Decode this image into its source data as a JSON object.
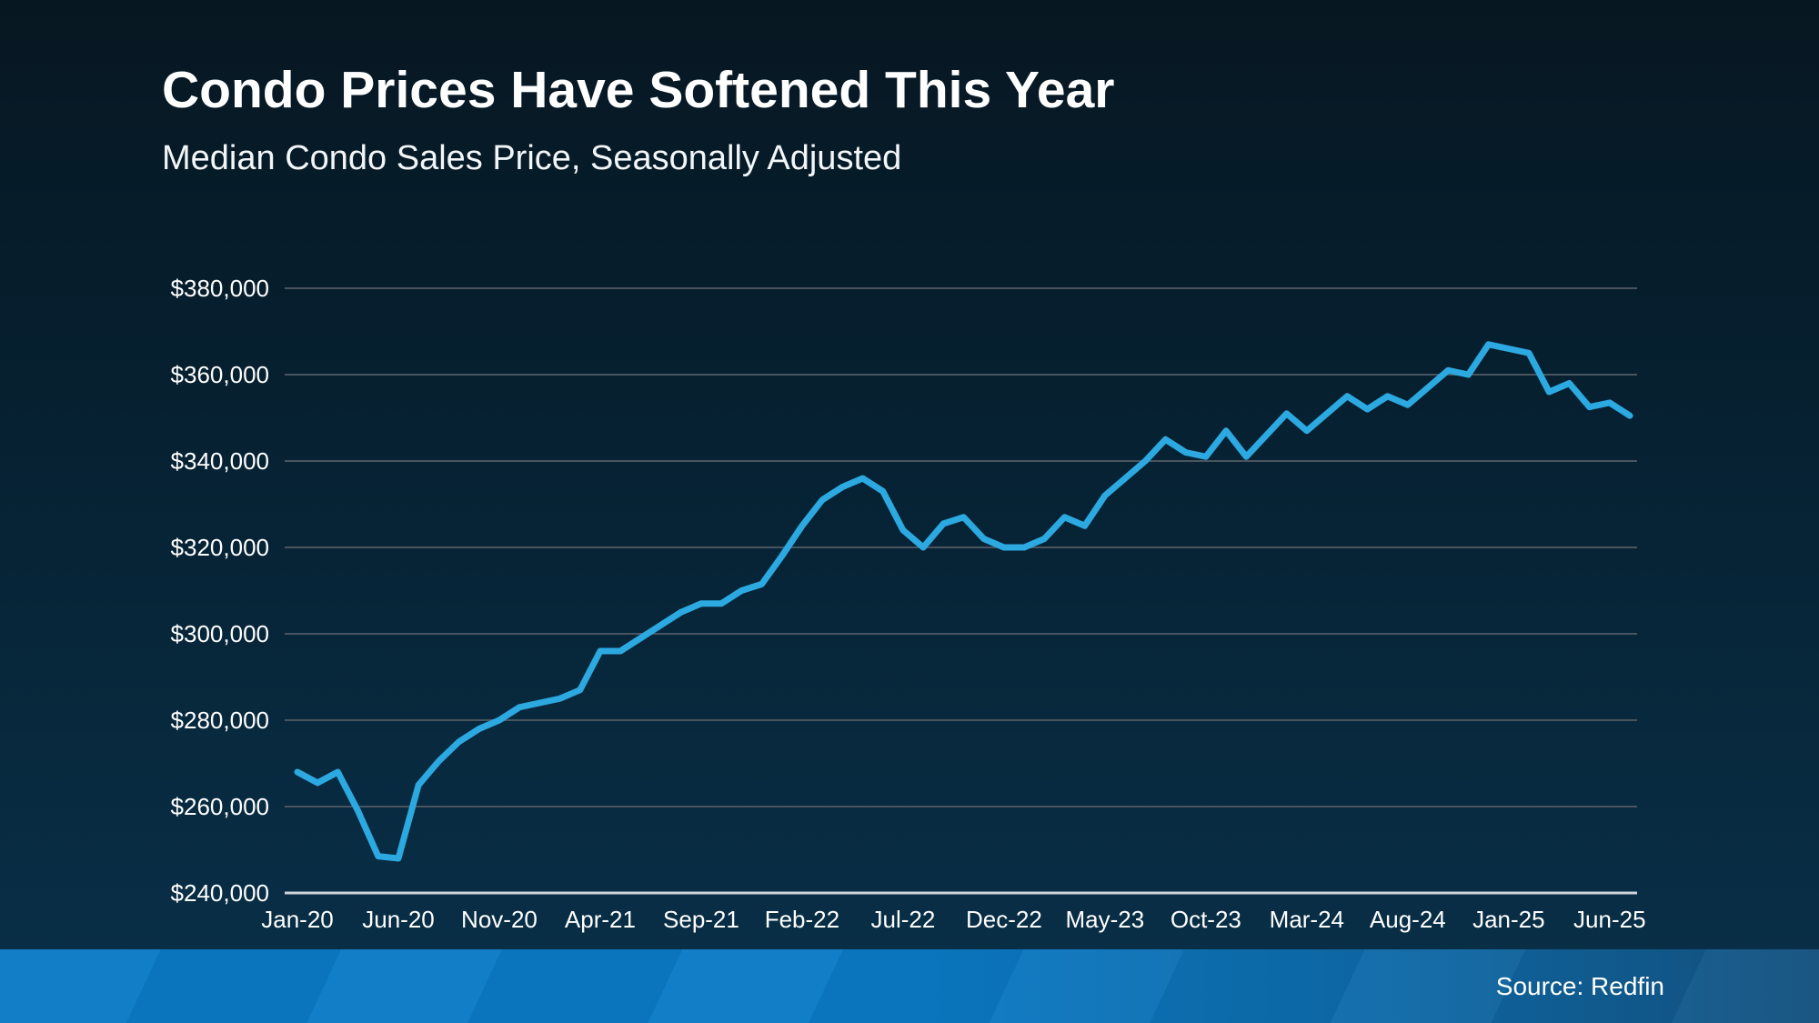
{
  "header": {
    "title": "Condo Prices Have Softened This Year",
    "subtitle": "Median Condo Sales Price, Seasonally Adjusted"
  },
  "footer": {
    "source": "Source: Redfin"
  },
  "colors": {
    "background_top": "#071722",
    "background_bottom": "#093049",
    "line": "#2CA9E1",
    "gridline": "#4a545f",
    "axis_line": "#ccd4da",
    "text": "#ffffff",
    "footer_bar_left": "#0a7ac5",
    "footer_bar_right": "#14517e"
  },
  "chart_data": {
    "type": "line",
    "title": "Condo Prices Have Softened This Year",
    "subtitle": "Median Condo Sales Price, Seasonally Adjusted",
    "xlabel": "",
    "ylabel": "",
    "unit": "USD",
    "grid": true,
    "legend": false,
    "ylim": [
      240000,
      380000
    ],
    "y_ticks": [
      {
        "value": 380000,
        "label": "$380,000"
      },
      {
        "value": 360000,
        "label": "$360,000"
      },
      {
        "value": 340000,
        "label": "$340,000"
      },
      {
        "value": 320000,
        "label": "$320,000"
      },
      {
        "value": 300000,
        "label": "$300,000"
      },
      {
        "value": 280000,
        "label": "$280,000"
      },
      {
        "value": 260000,
        "label": "$260,000"
      },
      {
        "value": 240000,
        "label": "$240,000"
      }
    ],
    "x_ticks": [
      {
        "index": 0,
        "label": "Jan-20"
      },
      {
        "index": 5,
        "label": "Jun-20"
      },
      {
        "index": 10,
        "label": "Nov-20"
      },
      {
        "index": 15,
        "label": "Apr-21"
      },
      {
        "index": 20,
        "label": "Sep-21"
      },
      {
        "index": 25,
        "label": "Feb-22"
      },
      {
        "index": 30,
        "label": "Jul-22"
      },
      {
        "index": 35,
        "label": "Dec-22"
      },
      {
        "index": 40,
        "label": "May-23"
      },
      {
        "index": 45,
        "label": "Oct-23"
      },
      {
        "index": 50,
        "label": "Mar-24"
      },
      {
        "index": 55,
        "label": "Aug-24"
      },
      {
        "index": 60,
        "label": "Jan-25"
      },
      {
        "index": 65,
        "label": "Jun-25"
      }
    ],
    "points": [
      {
        "month": "Jan-20",
        "value": 268000
      },
      {
        "month": "Feb-20",
        "value": 265500
      },
      {
        "month": "Mar-20",
        "value": 268000
      },
      {
        "month": "Apr-20",
        "value": 259000
      },
      {
        "month": "May-20",
        "value": 248500
      },
      {
        "month": "Jun-20",
        "value": 248000
      },
      {
        "month": "Jul-20",
        "value": 265000
      },
      {
        "month": "Aug-20",
        "value": 270500
      },
      {
        "month": "Sep-20",
        "value": 275000
      },
      {
        "month": "Oct-20",
        "value": 278000
      },
      {
        "month": "Nov-20",
        "value": 280000
      },
      {
        "month": "Dec-20",
        "value": 283000
      },
      {
        "month": "Jan-21",
        "value": 284000
      },
      {
        "month": "Feb-21",
        "value": 285000
      },
      {
        "month": "Mar-21",
        "value": 287000
      },
      {
        "month": "Apr-21",
        "value": 296000
      },
      {
        "month": "May-21",
        "value": 296000
      },
      {
        "month": "Jun-21",
        "value": 299000
      },
      {
        "month": "Jul-21",
        "value": 302000
      },
      {
        "month": "Aug-21",
        "value": 305000
      },
      {
        "month": "Sep-21",
        "value": 307000
      },
      {
        "month": "Oct-21",
        "value": 307000
      },
      {
        "month": "Nov-21",
        "value": 310000
      },
      {
        "month": "Dec-21",
        "value": 311500
      },
      {
        "month": "Jan-22",
        "value": 318000
      },
      {
        "month": "Feb-22",
        "value": 325000
      },
      {
        "month": "Mar-22",
        "value": 331000
      },
      {
        "month": "Apr-22",
        "value": 334000
      },
      {
        "month": "May-22",
        "value": 336000
      },
      {
        "month": "Jun-22",
        "value": 333000
      },
      {
        "month": "Jul-22",
        "value": 324000
      },
      {
        "month": "Aug-22",
        "value": 320000
      },
      {
        "month": "Sep-22",
        "value": 325500
      },
      {
        "month": "Oct-22",
        "value": 327000
      },
      {
        "month": "Nov-22",
        "value": 322000
      },
      {
        "month": "Dec-22",
        "value": 320000
      },
      {
        "month": "Jan-23",
        "value": 320000
      },
      {
        "month": "Feb-23",
        "value": 322000
      },
      {
        "month": "Mar-23",
        "value": 327000
      },
      {
        "month": "Apr-23",
        "value": 325000
      },
      {
        "month": "May-23",
        "value": 332000
      },
      {
        "month": "Jun-23",
        "value": 336000
      },
      {
        "month": "Jul-23",
        "value": 340000
      },
      {
        "month": "Aug-23",
        "value": 345000
      },
      {
        "month": "Sep-23",
        "value": 342000
      },
      {
        "month": "Oct-23",
        "value": 341000
      },
      {
        "month": "Nov-23",
        "value": 347000
      },
      {
        "month": "Dec-23",
        "value": 341000
      },
      {
        "month": "Jan-24",
        "value": 346000
      },
      {
        "month": "Feb-24",
        "value": 351000
      },
      {
        "month": "Mar-24",
        "value": 347000
      },
      {
        "month": "Apr-24",
        "value": 351000
      },
      {
        "month": "May-24",
        "value": 355000
      },
      {
        "month": "Jun-24",
        "value": 352000
      },
      {
        "month": "Jul-24",
        "value": 355000
      },
      {
        "month": "Aug-24",
        "value": 353000
      },
      {
        "month": "Sep-24",
        "value": 357000
      },
      {
        "month": "Oct-24",
        "value": 361000
      },
      {
        "month": "Nov-24",
        "value": 360000
      },
      {
        "month": "Dec-24",
        "value": 367000
      },
      {
        "month": "Jan-25",
        "value": 366000
      },
      {
        "month": "Feb-25",
        "value": 365000
      },
      {
        "month": "Mar-25",
        "value": 356000
      },
      {
        "month": "Apr-25",
        "value": 358000
      },
      {
        "month": "May-25",
        "value": 352500
      },
      {
        "month": "Jun-25",
        "value": 353500
      },
      {
        "month": "Jul-25",
        "value": 350500
      }
    ]
  }
}
